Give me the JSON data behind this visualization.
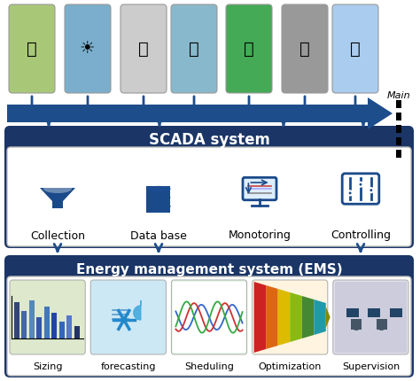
{
  "bg_color": "#ffffff",
  "arrow_color": "#1e4d8c",
  "dark_blue": "#1a3566",
  "scada_text": "SCADA system",
  "ems_text": "Energy management system (EMS)",
  "main_label": "Main",
  "scada_items": [
    "Collection",
    "Data base",
    "Monotoring",
    "Controlling"
  ],
  "ems_items": [
    "Sizing",
    "forecasting",
    "Sheduling",
    "Optimization",
    "Supervision"
  ],
  "src_colors": [
    "#a8c878",
    "#7aaecc",
    "#cccccc",
    "#88b8cc",
    "#44aa55",
    "#999999",
    "#aaccee"
  ],
  "ems_bg_colors": [
    "#dde8cc",
    "#cce8f4",
    "#e8f8e8",
    "#fff4e0",
    "#e0e0ee"
  ]
}
